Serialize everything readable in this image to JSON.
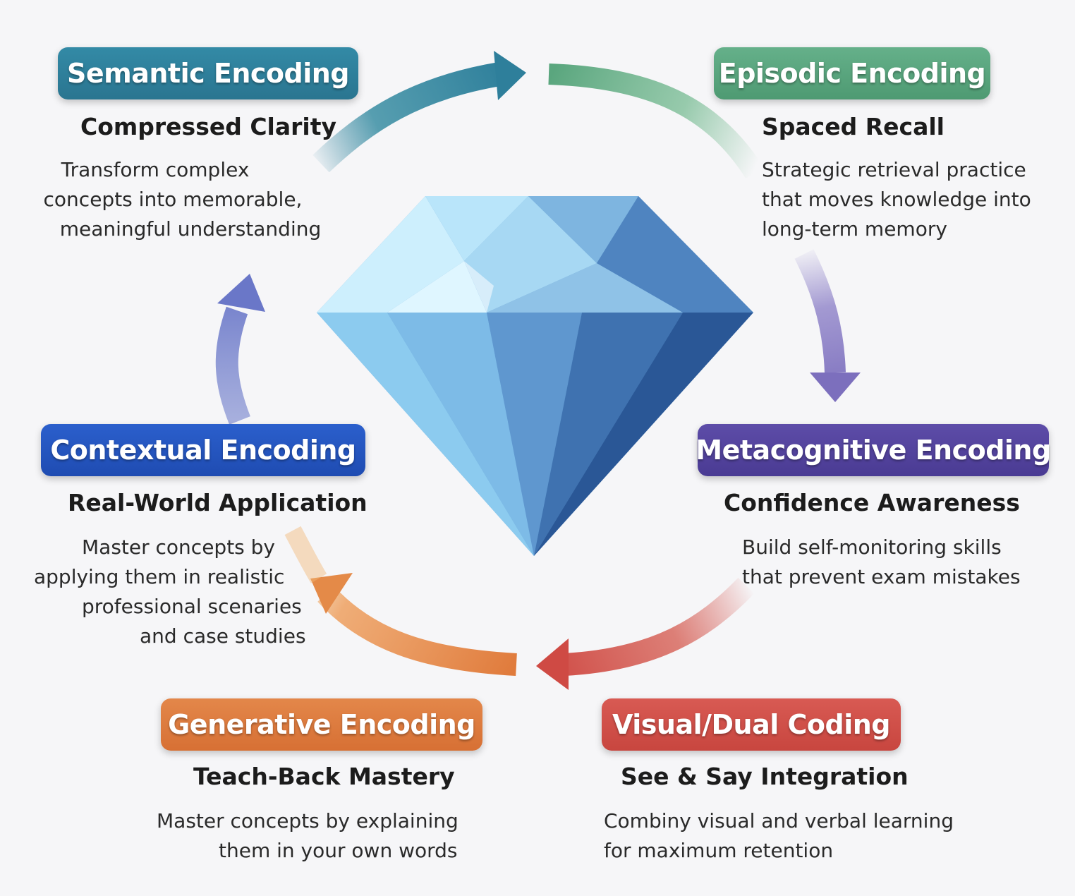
{
  "colors": {
    "semantic": "#2e7f9b",
    "episodic": "#5aa67e",
    "metacognitive": "#55449e",
    "visual": "#d2504a",
    "generative": "#e07b3c",
    "contextual": "#2354c0",
    "background": "#f6f6f8"
  },
  "center_icon": "diamond-icon",
  "nodes": {
    "semantic": {
      "title": "Semantic Encoding",
      "subtitle": "Compressed Clarity",
      "desc": [
        "Transform complex",
        "concepts into memorable,",
        "meaningful understanding"
      ]
    },
    "episodic": {
      "title": "Episodic Encoding",
      "subtitle": "Spaced Recall",
      "desc": [
        "Strategic retrieval practice",
        "that moves knowledge into",
        "long-term memory"
      ]
    },
    "metacognitive": {
      "title": "Metacognitive Encoding",
      "subtitle": "Confidence Awareness",
      "desc": [
        "Build self-monitoring skills",
        "that prevent exam mistakes"
      ]
    },
    "visual": {
      "title": "Visual/Dual Coding",
      "subtitle": "See & Say Integration",
      "desc": [
        "Combiny visual and verbal learning",
        "for maximum retention"
      ]
    },
    "generative": {
      "title": "Generative Encoding",
      "subtitle": "Teach-Back Mastery",
      "desc": [
        "Master concepts by explaining",
        "them in your own words"
      ]
    },
    "contextual": {
      "title": "Contextual Encoding",
      "subtitle": "Real-World Application",
      "desc": [
        "Master concepts by",
        "applying them in realistic",
        "professional scenaries",
        "and case studies"
      ]
    }
  }
}
